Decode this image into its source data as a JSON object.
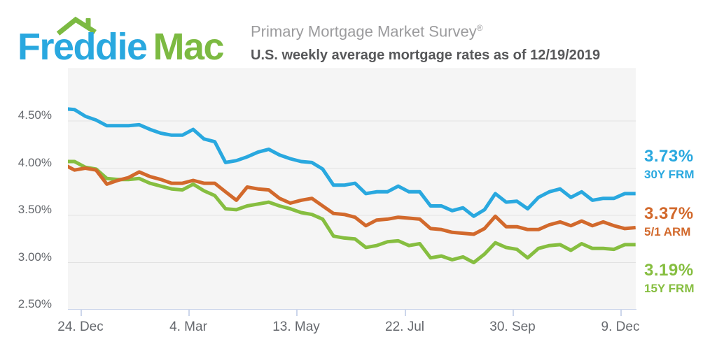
{
  "header": {
    "logo_word1": "Freddie",
    "logo_word2": "Mac",
    "title": "Primary Mortgage Market Survey",
    "registered": "®",
    "subtitle": "U.S. weekly average mortgage rates as of 12/19/2019"
  },
  "chart_data": {
    "type": "line",
    "title": "Primary Mortgage Market Survey",
    "subtitle": "U.S. weekly average mortgage rates as of 12/19/2019",
    "x_unit": "week",
    "frequency": "weekly, ~53 weeks ending 12/19/2019",
    "grid": true,
    "ylim": [
      2.5,
      5.0
    ],
    "y_ticks": [
      {
        "label": "4.50%",
        "value": 4.5
      },
      {
        "label": "4.00%",
        "value": 4.0
      },
      {
        "label": "3.50%",
        "value": 3.5
      },
      {
        "label": "3.00%",
        "value": 3.0
      },
      {
        "label": "2.50%",
        "value": 2.5
      }
    ],
    "y_gridlines": [
      4.5,
      4.0,
      3.5,
      3.0
    ],
    "x_ticks": [
      {
        "label": "24. Dec",
        "week": 1.571
      },
      {
        "label": "4. Mar",
        "week": 11.571
      },
      {
        "label": "13. May",
        "week": 21.571
      },
      {
        "label": "22. Jul",
        "week": 31.571
      },
      {
        "label": "30. Sep",
        "week": 41.571
      },
      {
        "label": "9. Dec",
        "week": 51.571
      }
    ],
    "legend_position": "right",
    "series": [
      {
        "name": "30Y FRM",
        "current_label": "3.73%",
        "color": "#29a8df",
        "values": [
          4.63,
          4.62,
          4.55,
          4.51,
          4.45,
          4.45,
          4.45,
          4.46,
          4.41,
          4.37,
          4.35,
          4.35,
          4.41,
          4.31,
          4.28,
          4.06,
          4.08,
          4.12,
          4.17,
          4.2,
          4.14,
          4.1,
          4.07,
          4.06,
          3.99,
          3.82,
          3.82,
          3.84,
          3.73,
          3.75,
          3.75,
          3.81,
          3.75,
          3.75,
          3.6,
          3.6,
          3.55,
          3.58,
          3.49,
          3.56,
          3.73,
          3.64,
          3.65,
          3.57,
          3.69,
          3.75,
          3.78,
          3.69,
          3.75,
          3.66,
          3.68,
          3.68,
          3.73,
          3.73
        ]
      },
      {
        "name": "5/1 ARM",
        "current_label": "3.37%",
        "color": "#d2692c",
        "values": [
          4.04,
          3.98,
          4.0,
          3.98,
          3.83,
          3.87,
          3.9,
          3.96,
          3.91,
          3.88,
          3.84,
          3.84,
          3.87,
          3.84,
          3.84,
          3.75,
          3.66,
          3.8,
          3.78,
          3.77,
          3.68,
          3.63,
          3.66,
          3.68,
          3.6,
          3.52,
          3.51,
          3.48,
          3.39,
          3.45,
          3.46,
          3.48,
          3.47,
          3.46,
          3.36,
          3.35,
          3.32,
          3.31,
          3.3,
          3.36,
          3.49,
          3.38,
          3.38,
          3.35,
          3.35,
          3.4,
          3.43,
          3.39,
          3.44,
          3.39,
          3.43,
          3.39,
          3.36,
          3.37
        ]
      },
      {
        "name": "15Y FRM",
        "current_label": "3.19%",
        "color": "#86be40",
        "values": [
          4.07,
          4.07,
          4.01,
          3.99,
          3.89,
          3.88,
          3.88,
          3.89,
          3.84,
          3.81,
          3.78,
          3.77,
          3.83,
          3.76,
          3.71,
          3.57,
          3.56,
          3.6,
          3.62,
          3.64,
          3.6,
          3.57,
          3.53,
          3.51,
          3.46,
          3.28,
          3.26,
          3.25,
          3.16,
          3.18,
          3.22,
          3.23,
          3.18,
          3.2,
          3.05,
          3.07,
          3.03,
          3.06,
          3.0,
          3.09,
          3.21,
          3.16,
          3.14,
          3.05,
          3.15,
          3.18,
          3.19,
          3.13,
          3.2,
          3.15,
          3.15,
          3.14,
          3.19,
          3.19
        ]
      }
    ]
  },
  "colors": {
    "logo_blue": "#29a8df",
    "logo_green": "#7cba42",
    "plot_background": "#f5f5f5",
    "gridline": "#e2e2e2",
    "axis_line": "#ccd6eb",
    "axis_text": "#66696e",
    "title_text": "#9b9b9d",
    "subtitle_text": "#57585a"
  }
}
